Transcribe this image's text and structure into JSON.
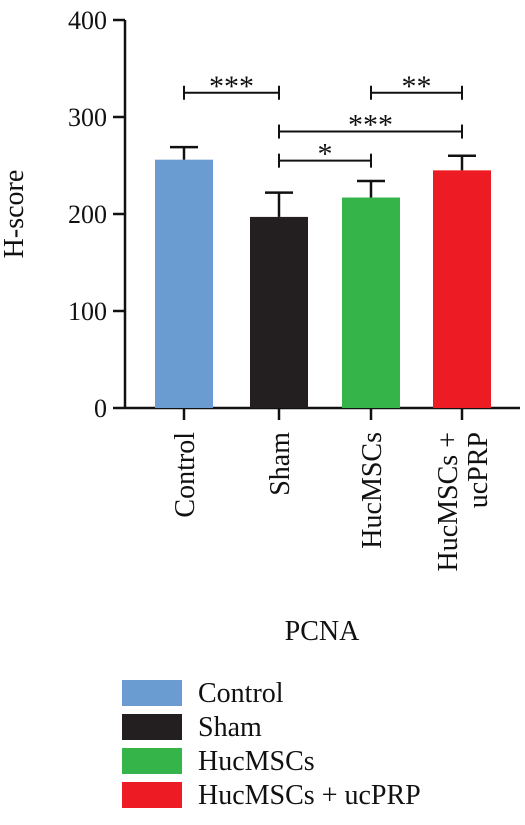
{
  "chart_data": {
    "type": "bar",
    "title": "",
    "xlabel": "PCNA",
    "ylabel": "H-score",
    "ylim": [
      0,
      400
    ],
    "yticks": [
      0,
      100,
      200,
      300,
      400
    ],
    "categories": [
      "Control",
      "Sham",
      "HucMSCs",
      "HucMSCs + ucPRP"
    ],
    "tick_labels": [
      [
        "Control"
      ],
      [
        "Sham"
      ],
      [
        "HucMSCs"
      ],
      [
        "HucMSCs +",
        "ucPRP"
      ]
    ],
    "values": [
      256,
      197,
      217,
      245
    ],
    "errors": [
      13,
      25,
      17,
      15
    ],
    "colors": [
      "#6a9bd1",
      "#231f20",
      "#35b44a",
      "#ed1c24"
    ],
    "grid": false,
    "legend_position": "bottom",
    "legend": [
      "Control",
      "Sham",
      "HucMSCs",
      "HucMSCs + ucPRP"
    ],
    "significance": [
      {
        "from": "Control",
        "to": "Sham",
        "label": "***",
        "y": 325
      },
      {
        "from": "Sham",
        "to": "HucMSCs + ucPRP",
        "label": "***",
        "y": 285
      },
      {
        "from": "Sham",
        "to": "HucMSCs",
        "label": "*",
        "y": 255
      },
      {
        "from": "HucMSCs",
        "to": "HucMSCs + ucPRP",
        "label": "**",
        "y": 325
      }
    ]
  }
}
